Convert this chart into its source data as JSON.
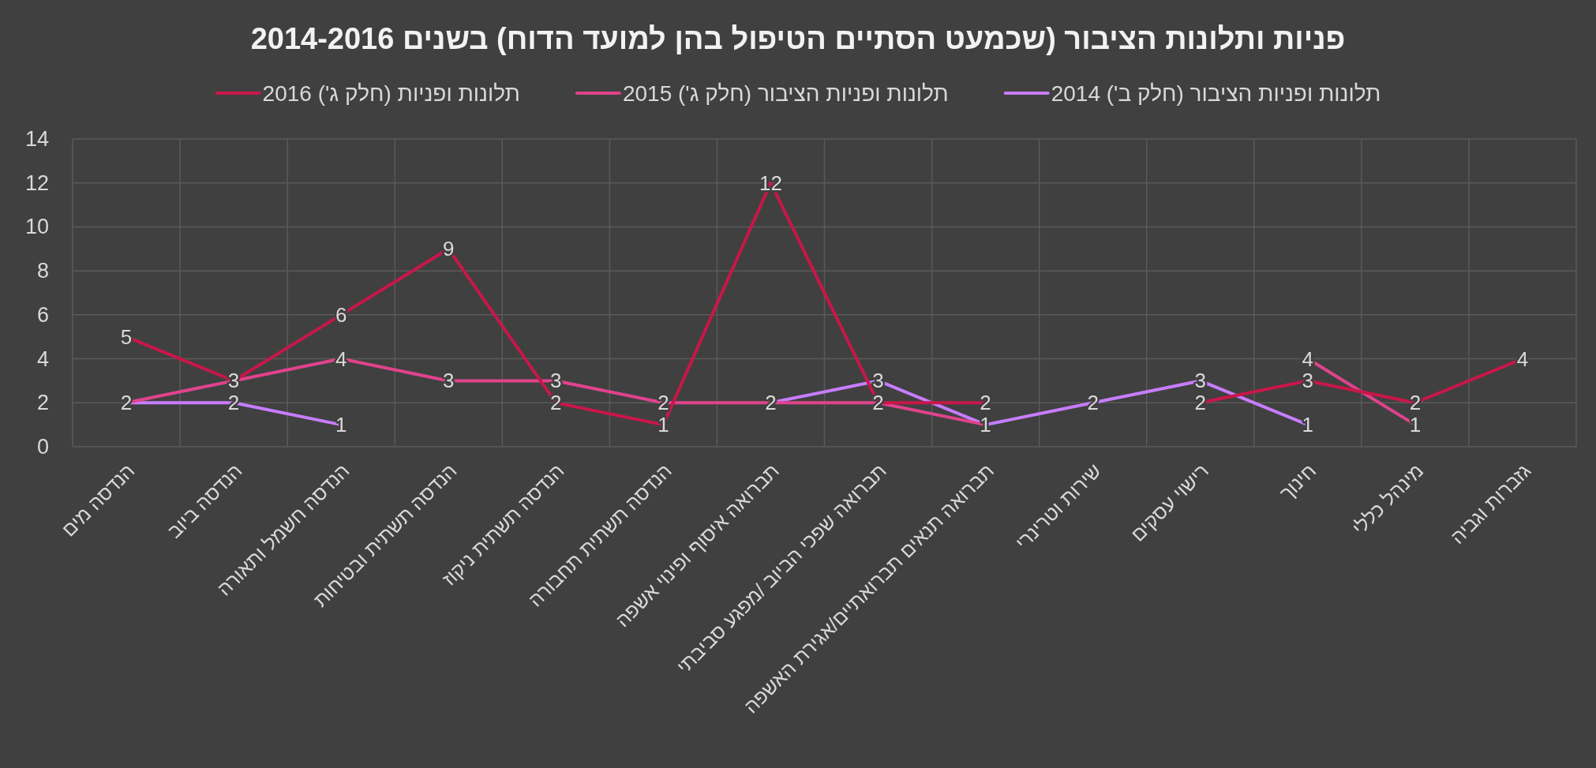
{
  "chart_data": {
    "type": "line",
    "title": "פניות ותלונות הציבור (שכמעט הסתיים הטיפול בהן למועד הדוח) בשנים 2014-2016",
    "categories": [
      "הנדסה מים",
      "הנדסה ביוב",
      "הנדסה חשמל ותאורה",
      "הנדסה תשתית ובטיחות",
      "הנדסה תשתית ניקוז",
      "הנדסה תשתית תחבורה",
      "תברואה איסוף ופינוי אשפה",
      "תברואה שפכי הביוב /מפגע סביבתי",
      "תברואה תנאים תברואתיים/אגירת האשפה",
      "שירות וטרינרי",
      "רישוי עסקים",
      "חינוך",
      "מינהל כללי",
      "גזברות וגביה"
    ],
    "series": [
      {
        "name": "תלונות ופניות הציבור (חלק ב') 2014",
        "color": "#c77dff",
        "values": [
          2,
          2,
          1,
          null,
          null,
          null,
          2,
          3,
          1,
          2,
          3,
          1,
          null,
          null
        ],
        "value_labels": [
          "2",
          "2",
          "1",
          null,
          null,
          null,
          "2",
          "3",
          "1",
          "2",
          "3",
          "1",
          null,
          null
        ]
      },
      {
        "name": "תלונות ופניות הציבור (חלק ג') 2015",
        "color": "#e0438c",
        "values": [
          2,
          3,
          4,
          3,
          3,
          2,
          2,
          2,
          1,
          null,
          null,
          4,
          1,
          null
        ],
        "value_labels": [
          null,
          "3",
          "4",
          "3",
          "3",
          "2",
          null,
          "2",
          null,
          null,
          null,
          "4",
          "1",
          null
        ]
      },
      {
        "name": "תלונות ופניות (חלק ג') 2016",
        "color": "#c8174a",
        "values": [
          5,
          3,
          6,
          9,
          2,
          1,
          12,
          2,
          2,
          null,
          2,
          3,
          2,
          4
        ],
        "value_labels": [
          "5",
          null,
          "6",
          "9",
          "2",
          "1",
          "12",
          null,
          "2",
          null,
          "2",
          "3",
          "2",
          "4"
        ]
      }
    ],
    "ylim": [
      0,
      14
    ],
    "yticks": [
      0,
      2,
      4,
      6,
      8,
      10,
      12,
      14
    ],
    "grid": true,
    "legend": "top",
    "marker": "none",
    "line_style": "solid"
  }
}
